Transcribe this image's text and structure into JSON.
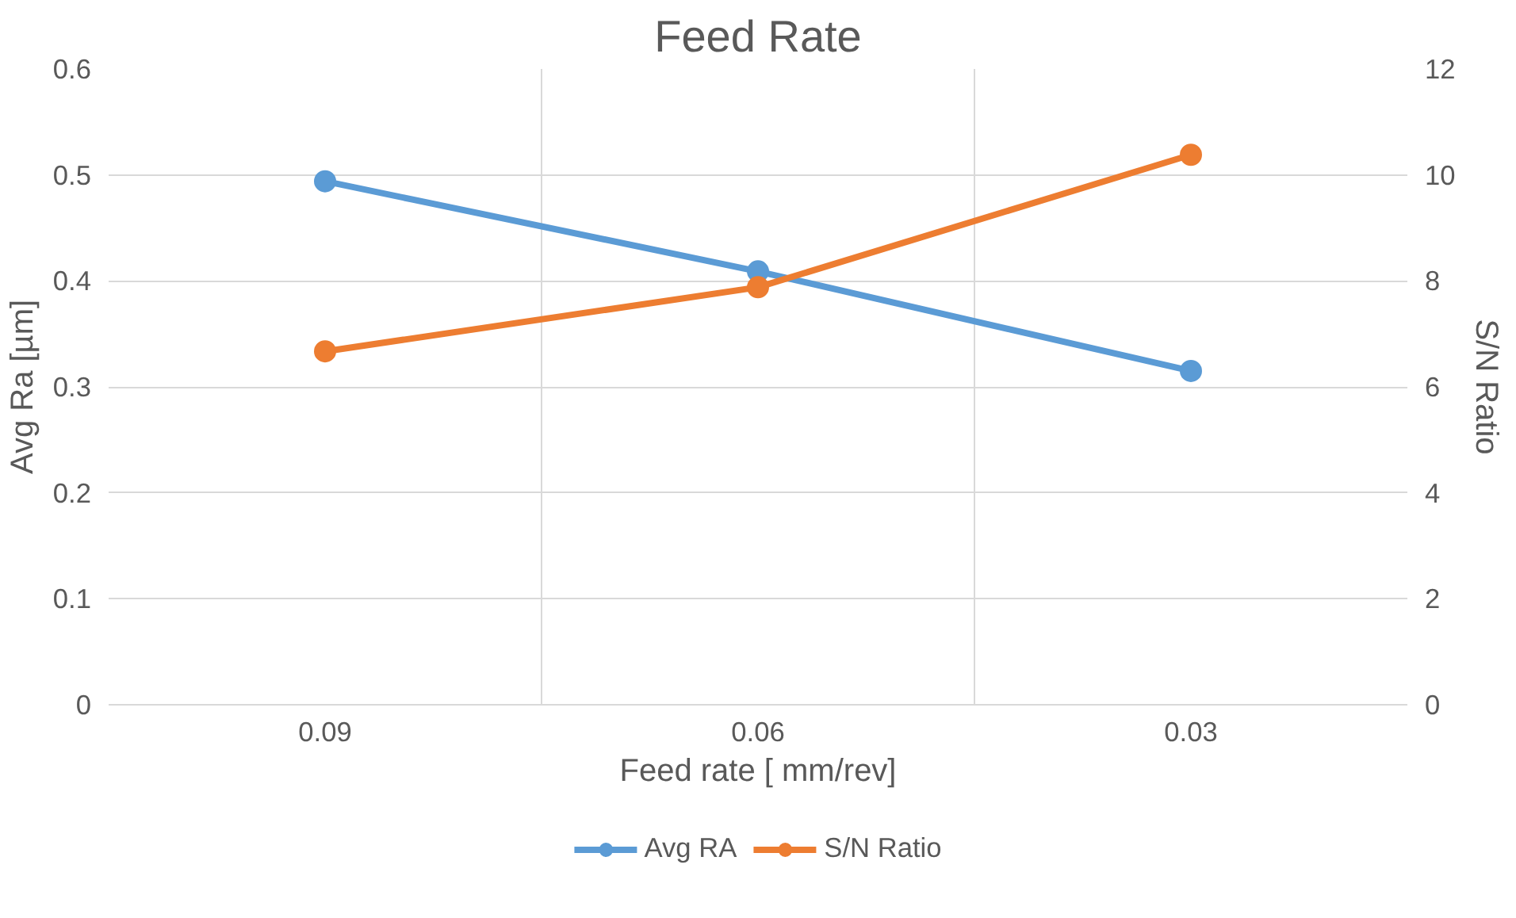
{
  "chart_data": {
    "type": "line",
    "title": "Feed Rate",
    "xlabel": "Feed rate [ mm/rev]",
    "ylabel": "Avg Ra [µm]",
    "y2label": "S/N Ratio",
    "categories": [
      "0.09",
      "0.06",
      "0.03"
    ],
    "series": [
      {
        "name": "Avg RA",
        "color": "#5b9bd5",
        "values": [
          0.494,
          0.409,
          0.315
        ]
      },
      {
        "name": "S/N Ratio",
        "color": "#ed7d31",
        "values": [
          6.67,
          7.88,
          10.38
        ],
        "axis": "y2"
      }
    ],
    "ylim": [
      0,
      0.6
    ],
    "yticks": [
      0,
      0.1,
      0.2,
      0.3,
      0.4,
      0.5,
      0.6
    ],
    "y2lim": [
      0,
      12
    ],
    "y2ticks": [
      0,
      2,
      4,
      6,
      8,
      10,
      12
    ],
    "grid": true,
    "legend": "bottom",
    "marker": "circle",
    "line_style": "solid"
  }
}
